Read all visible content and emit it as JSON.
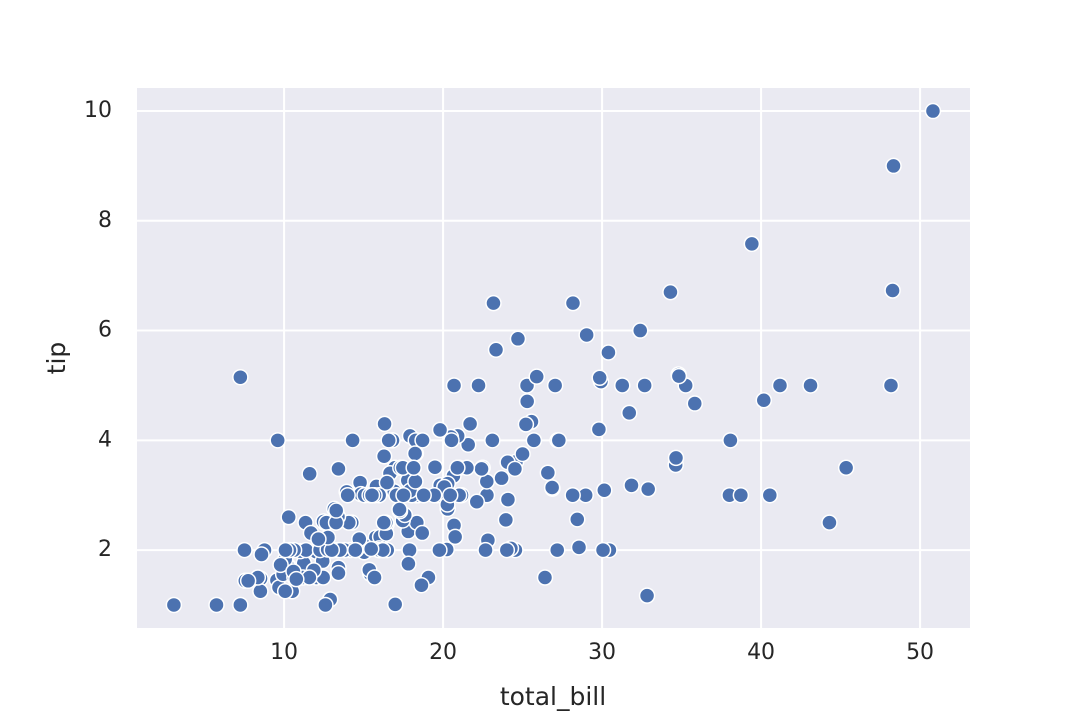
{
  "chart_data": {
    "type": "scatter",
    "xlabel": "total_bill",
    "ylabel": "tip",
    "color": "#4c72b0",
    "grid": true,
    "xlim": [
      0.75,
      53.14
    ],
    "ylim": [
      0.58,
      10.42
    ],
    "xticks": [
      10,
      20,
      30,
      40,
      50
    ],
    "yticks": [
      2,
      4,
      6,
      8,
      10
    ],
    "x": [
      16.99,
      10.34,
      21.01,
      23.68,
      24.59,
      25.29,
      8.77,
      26.88,
      15.04,
      14.78,
      10.27,
      35.26,
      15.42,
      18.43,
      14.83,
      21.58,
      10.33,
      16.29,
      16.97,
      20.65,
      17.92,
      20.29,
      15.77,
      39.42,
      19.82,
      17.81,
      13.37,
      12.69,
      21.7,
      19.65,
      9.55,
      18.35,
      15.06,
      20.69,
      17.78,
      24.06,
      16.31,
      16.93,
      18.69,
      31.27,
      16.04,
      17.46,
      13.94,
      9.68,
      30.4,
      18.29,
      22.23,
      32.4,
      28.55,
      18.04,
      12.54,
      10.29,
      34.81,
      9.94,
      25.56,
      19.49,
      38.01,
      26.41,
      11.24,
      48.27,
      20.29,
      13.81,
      11.02,
      18.29,
      17.59,
      20.08,
      16.45,
      3.07,
      20.23,
      15.01,
      12.02,
      17.07,
      26.86,
      25.28,
      14.73,
      10.51,
      17.92,
      27.2,
      22.76,
      17.29,
      19.44,
      16.66,
      10.07,
      32.68,
      15.98,
      34.83,
      13.03,
      18.28,
      24.71,
      21.16,
      28.97,
      22.49,
      5.75,
      16.32,
      22.75,
      40.17,
      27.28,
      12.03,
      21.01,
      12.46,
      11.35,
      15.38,
      44.3,
      22.42,
      20.92,
      15.36,
      20.49,
      25.21,
      18.24,
      14.31,
      14.0,
      7.25,
      38.07,
      23.95,
      25.71,
      17.31,
      29.93,
      10.65,
      12.43,
      24.08,
      11.69,
      13.42,
      14.26,
      15.95,
      12.48,
      29.8,
      8.52,
      14.52,
      11.38,
      22.82,
      19.08,
      20.27,
      11.17,
      12.26,
      18.26,
      8.51,
      10.33,
      14.15,
      16.0,
      13.16,
      17.47,
      34.3,
      41.19,
      27.05,
      16.43,
      8.35,
      18.64,
      11.87,
      9.78,
      7.51,
      14.07,
      13.13,
      17.26,
      24.55,
      19.77,
      29.85,
      48.17,
      25.0,
      13.39,
      16.49,
      21.5,
      12.66,
      16.21,
      13.81,
      17.51,
      24.52,
      20.76,
      31.71,
      10.59,
      10.63,
      50.81,
      15.81,
      7.25,
      31.85,
      16.82,
      32.9,
      17.89,
      14.48,
      9.6,
      34.63,
      34.65,
      23.33,
      45.35,
      23.17,
      40.55,
      20.69,
      20.9,
      30.46,
      18.15,
      23.1,
      15.69,
      19.81,
      28.44,
      15.48,
      16.58,
      7.56,
      10.34,
      43.11,
      13.0,
      13.51,
      18.71,
      12.74,
      13.0,
      16.4,
      20.53,
      16.47,
      26.59,
      38.73,
      24.27,
      12.76,
      30.06,
      25.89,
      48.33,
      13.27,
      28.17,
      12.9,
      28.15,
      11.59,
      7.74,
      30.14,
      12.16,
      13.42,
      8.58,
      15.98,
      13.42,
      16.27,
      10.09,
      20.45,
      13.28,
      22.12,
      24.01,
      15.69,
      11.61,
      10.77,
      15.53,
      10.07,
      12.6,
      32.83,
      35.83,
      29.03,
      27.18,
      22.67,
      17.82,
      18.78
    ],
    "values": [
      1.01,
      1.66,
      3.5,
      3.31,
      3.61,
      4.71,
      2.0,
      3.12,
      1.96,
      3.23,
      1.71,
      5.0,
      1.57,
      3.0,
      3.02,
      3.92,
      1.67,
      3.71,
      3.5,
      3.35,
      4.08,
      2.75,
      2.23,
      7.58,
      3.18,
      2.34,
      2.0,
      2.0,
      4.3,
      3.0,
      1.45,
      2.5,
      3.0,
      2.45,
      3.27,
      3.6,
      2.0,
      3.07,
      2.31,
      5.0,
      2.24,
      2.54,
      3.06,
      1.32,
      5.6,
      3.0,
      5.0,
      6.0,
      2.05,
      3.0,
      2.5,
      2.6,
      5.2,
      1.56,
      4.34,
      3.51,
      3.0,
      1.5,
      1.76,
      6.73,
      3.21,
      2.0,
      1.98,
      3.76,
      2.64,
      3.15,
      2.47,
      1.0,
      2.01,
      2.09,
      1.97,
      3.0,
      3.14,
      5.0,
      2.2,
      1.25,
      3.08,
      4.0,
      3.0,
      2.71,
      3.0,
      3.4,
      1.83,
      5.0,
      2.03,
      5.17,
      2.0,
      4.0,
      5.85,
      3.0,
      3.0,
      3.5,
      1.0,
      4.3,
      3.25,
      4.73,
      4.0,
      1.5,
      3.0,
      1.5,
      2.5,
      3.0,
      2.5,
      3.48,
      4.08,
      1.64,
      4.06,
      4.29,
      3.76,
      4.0,
      3.0,
      1.0,
      4.0,
      2.55,
      4.0,
      3.5,
      5.07,
      1.5,
      1.8,
      2.92,
      2.31,
      1.68,
      2.5,
      2.0,
      2.52,
      4.2,
      1.48,
      2.0,
      2.0,
      2.18,
      1.5,
      2.83,
      1.5,
      2.0,
      3.25,
      1.25,
      2.0,
      2.0,
      2.0,
      2.75,
      3.5,
      6.7,
      5.0,
      5.0,
      2.3,
      1.5,
      1.36,
      1.63,
      1.73,
      2.0,
      2.5,
      2.0,
      2.74,
      2.0,
      2.0,
      5.14,
      5.0,
      3.75,
      2.61,
      2.0,
      3.5,
      2.5,
      2.0,
      2.0,
      3.0,
      3.48,
      2.24,
      4.5,
      1.61,
      2.0,
      10.0,
      3.16,
      5.15,
      3.18,
      4.0,
      3.11,
      2.0,
      2.0,
      4.0,
      3.55,
      3.68,
      5.65,
      3.5,
      6.5,
      3.0,
      5.0,
      3.5,
      2.0,
      3.5,
      4.0,
      1.5,
      4.19,
      2.56,
      2.02,
      4.0,
      1.44,
      2.0,
      5.0,
      2.0,
      2.0,
      4.0,
      2.01,
      2.0,
      2.5,
      4.0,
      3.23,
      3.41,
      3.0,
      2.03,
      2.23,
      2.0,
      5.16,
      9.0,
      2.5,
      6.5,
      1.1,
      3.0,
      1.5,
      1.44,
      3.09,
      2.2,
      3.48,
      1.92,
      3.0,
      1.58,
      2.5,
      2.0,
      3.0,
      2.72,
      2.88,
      2.0,
      3.0,
      3.39,
      1.47,
      3.0,
      1.25,
      1.0,
      1.17,
      4.67,
      5.92,
      2.0,
      2.0,
      1.75,
      3.0
    ]
  }
}
